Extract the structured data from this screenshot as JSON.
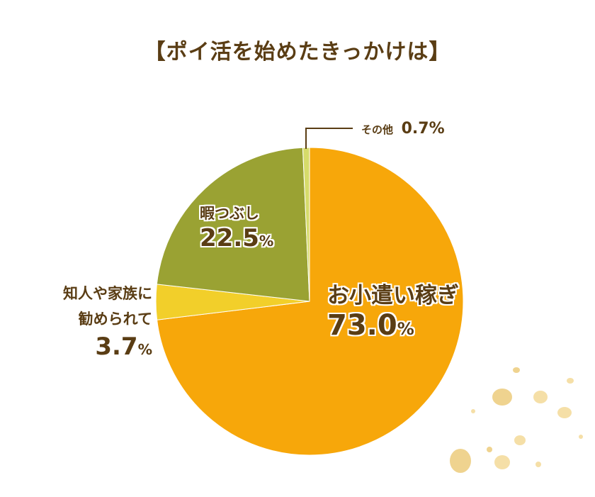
{
  "title": "【ポイ活を始めたきっかけは】",
  "chart_data": {
    "type": "pie",
    "title": "【ポイ活を始めたきっかけは】",
    "slices": [
      {
        "label": "お小遣い稼ぎ",
        "value": 73.0,
        "color": "#f7a70a"
      },
      {
        "label": "知人や家族に勧められて",
        "value": 3.7,
        "color": "#f2cf2a"
      },
      {
        "label": "暇つぶし",
        "value": 22.5,
        "color": "#9aa233"
      },
      {
        "label": "その他",
        "value": 0.7,
        "color": "#d6db6a"
      }
    ],
    "value_labels": [
      "73.0",
      "3.7",
      "22.5",
      "0.7"
    ],
    "unit": "%",
    "left_label_lines": [
      "知人や家族に",
      "勧められて"
    ]
  },
  "colors": {
    "text": "#5a3d14",
    "coin": "#f1d48a",
    "coin_dark": "#e9c46a"
  }
}
